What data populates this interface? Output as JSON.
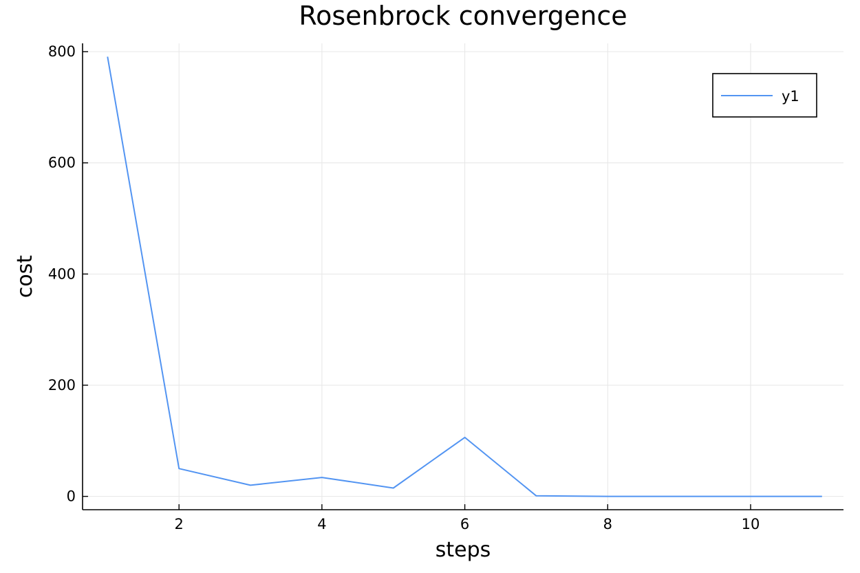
{
  "chart_data": {
    "type": "line",
    "title": "Rosenbrock convergence",
    "xlabel": "steps",
    "ylabel": "cost",
    "xlim": [
      0.65,
      11.3
    ],
    "ylim": [
      -24,
      815
    ],
    "xticks": [
      2,
      4,
      6,
      8,
      10
    ],
    "yticks": [
      0,
      200,
      400,
      600,
      800
    ],
    "xtick_labels": [
      "2",
      "4",
      "6",
      "8",
      "10"
    ],
    "ytick_labels": [
      "0",
      "200",
      "400",
      "600",
      "800"
    ],
    "grid": true,
    "legend_position": "top-right",
    "series": [
      {
        "name": "y1",
        "color": "#5294f2",
        "x": [
          1,
          2,
          3,
          4,
          5,
          6,
          7,
          8,
          9,
          10,
          11
        ],
        "y": [
          791,
          50,
          20,
          34,
          15,
          106,
          1,
          0,
          0,
          0,
          0
        ]
      }
    ]
  }
}
